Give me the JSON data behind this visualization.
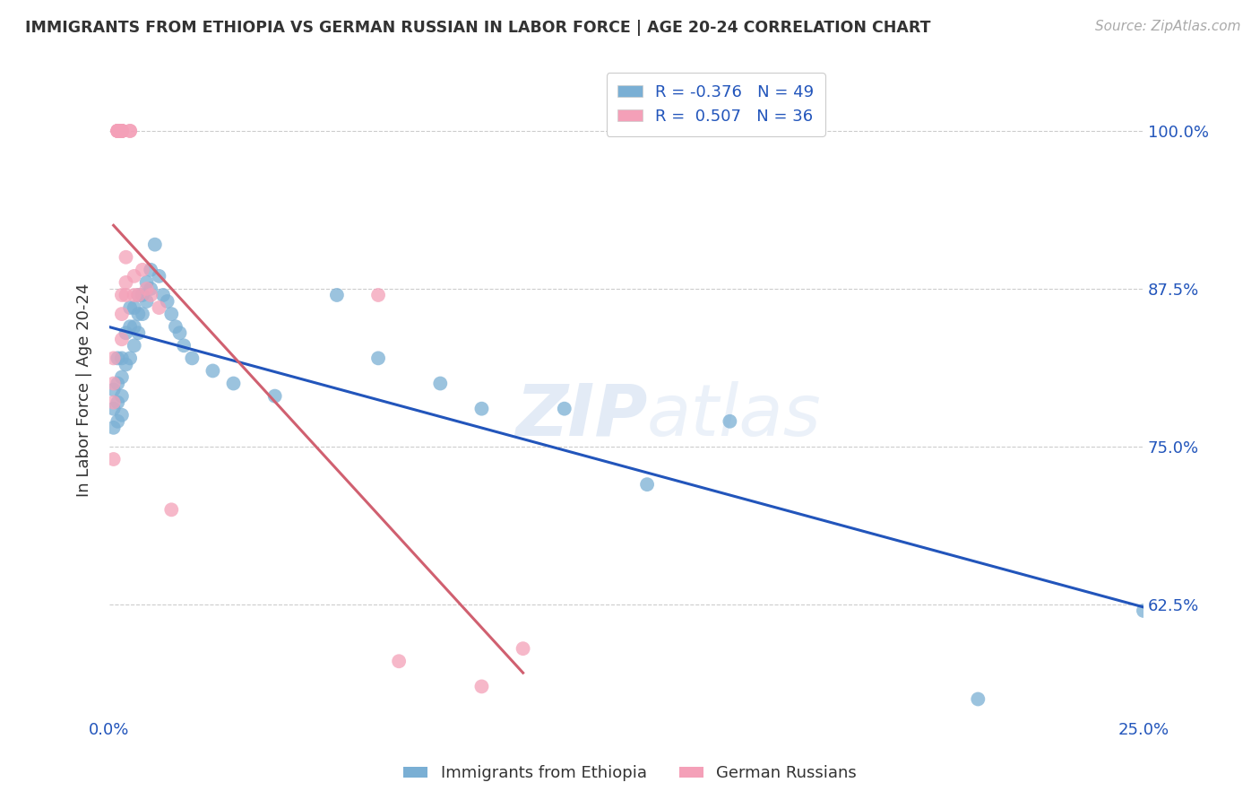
{
  "title": "IMMIGRANTS FROM ETHIOPIA VS GERMAN RUSSIAN IN LABOR FORCE | AGE 20-24 CORRELATION CHART",
  "source": "Source: ZipAtlas.com",
  "ylabel": "In Labor Force | Age 20-24",
  "xlim": [
    0.0,
    0.25
  ],
  "ylim": [
    0.535,
    1.055
  ],
  "xtick_labels_left": [
    "0.0%"
  ],
  "xtick_values_left": [
    0.0
  ],
  "xtick_labels_right": [
    "25.0%"
  ],
  "xtick_values_right": [
    0.25
  ],
  "ytick_labels": [
    "62.5%",
    "75.0%",
    "87.5%",
    "100.0%"
  ],
  "ytick_values": [
    0.625,
    0.75,
    0.875,
    1.0
  ],
  "legend_label1": "Immigrants from Ethiopia",
  "legend_label2": "German Russians",
  "blue_color": "#7aafd4",
  "pink_color": "#f4a0b8",
  "blue_line_color": "#2255bb",
  "pink_line_color": "#d06070",
  "blue_r": -0.376,
  "blue_n": 49,
  "pink_r": 0.507,
  "pink_n": 36,
  "blue_x": [
    0.001,
    0.001,
    0.001,
    0.002,
    0.002,
    0.002,
    0.002,
    0.003,
    0.003,
    0.003,
    0.003,
    0.004,
    0.004,
    0.005,
    0.005,
    0.005,
    0.006,
    0.006,
    0.006,
    0.007,
    0.007,
    0.007,
    0.008,
    0.008,
    0.009,
    0.009,
    0.01,
    0.01,
    0.011,
    0.012,
    0.013,
    0.014,
    0.015,
    0.016,
    0.017,
    0.018,
    0.02,
    0.025,
    0.03,
    0.04,
    0.055,
    0.065,
    0.08,
    0.09,
    0.11,
    0.13,
    0.15,
    0.21,
    0.25
  ],
  "blue_y": [
    0.795,
    0.78,
    0.765,
    0.82,
    0.8,
    0.785,
    0.77,
    0.82,
    0.805,
    0.79,
    0.775,
    0.84,
    0.815,
    0.86,
    0.845,
    0.82,
    0.86,
    0.845,
    0.83,
    0.87,
    0.855,
    0.84,
    0.87,
    0.855,
    0.88,
    0.865,
    0.89,
    0.875,
    0.91,
    0.885,
    0.87,
    0.865,
    0.855,
    0.845,
    0.84,
    0.83,
    0.82,
    0.81,
    0.8,
    0.79,
    0.87,
    0.82,
    0.8,
    0.78,
    0.78,
    0.72,
    0.77,
    0.55,
    0.62
  ],
  "pink_x": [
    0.001,
    0.001,
    0.001,
    0.001,
    0.002,
    0.002,
    0.002,
    0.002,
    0.002,
    0.003,
    0.003,
    0.003,
    0.003,
    0.003,
    0.003,
    0.003,
    0.003,
    0.003,
    0.003,
    0.004,
    0.004,
    0.004,
    0.005,
    0.005,
    0.006,
    0.006,
    0.007,
    0.008,
    0.009,
    0.01,
    0.012,
    0.015,
    0.065,
    0.07,
    0.09,
    0.1
  ],
  "pink_y": [
    0.82,
    0.8,
    0.785,
    0.74,
    1.0,
    1.0,
    1.0,
    1.0,
    1.0,
    1.0,
    1.0,
    1.0,
    1.0,
    1.0,
    1.0,
    1.0,
    0.87,
    0.855,
    0.835,
    0.9,
    0.88,
    0.87,
    1.0,
    1.0,
    0.885,
    0.87,
    0.87,
    0.89,
    0.875,
    0.87,
    0.86,
    0.7,
    0.87,
    0.58,
    0.56,
    0.59
  ],
  "watermark": "ZIPatlas",
  "background_color": "#ffffff",
  "grid_color": "#cccccc",
  "title_color": "#333333",
  "axis_label_color": "#2255bb",
  "tick_color": "#2255bb"
}
